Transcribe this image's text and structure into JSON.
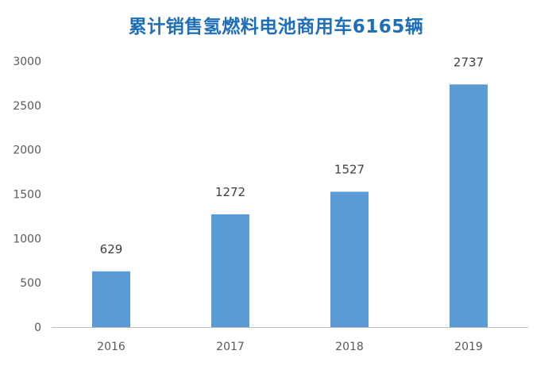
{
  "chart_data": {
    "type": "bar",
    "title": "累计销售氢燃料电池商用车6165辆",
    "categories": [
      "2016",
      "2017",
      "2018",
      "2019"
    ],
    "values": [
      629,
      1272,
      1527,
      2737
    ],
    "data_labels": [
      "629",
      "1272",
      "1527",
      "2737"
    ],
    "ylim": [
      0,
      3000
    ],
    "yticks": [
      0,
      500,
      1000,
      1500,
      2000,
      2500,
      3000
    ],
    "ytick_labels": [
      "0",
      "500",
      "1000",
      "1500",
      "2000",
      "2500",
      "3000"
    ],
    "grid": false,
    "legend": "none",
    "bar_color": "#5b9bd5",
    "axis_color": "#bfbfbf",
    "title_color": "#1f6fb8"
  }
}
